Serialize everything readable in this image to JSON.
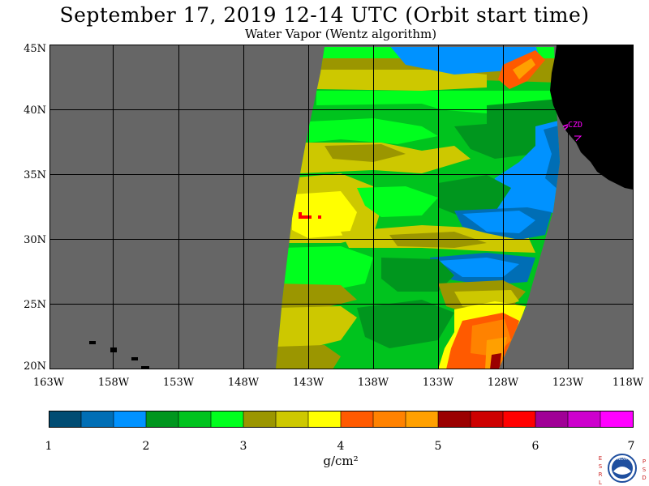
{
  "header": {
    "title": "September 17, 2019  12-14 UTC  (Orbit start time)",
    "subtitle": "Water Vapor (Wentz algorithm)"
  },
  "map": {
    "lat_labels": [
      "45N",
      "40N",
      "35N",
      "30N",
      "25N",
      "20N"
    ],
    "lon_labels": [
      "163W",
      "158W",
      "153W",
      "148W",
      "143W",
      "138W",
      "133W",
      "128W",
      "123W",
      "118W"
    ],
    "station_label": "CZD",
    "colors": {
      "land": "#000000",
      "no_data": "#666666",
      "grid": "#000000",
      "station": "#ff00ff"
    }
  },
  "colorbar": {
    "tick_labels": [
      "1",
      "2",
      "3",
      "4",
      "5",
      "6",
      "7"
    ],
    "unit_label": "g/cm²",
    "colors": [
      "#004c73",
      "#006eb5",
      "#0092ff",
      "#00961e",
      "#00c31e",
      "#00ff1e",
      "#9b9600",
      "#cdc800",
      "#ffff00",
      "#ff5a00",
      "#ff8200",
      "#ffa000",
      "#9b0000",
      "#cd0000",
      "#ff0000",
      "#a00096",
      "#cd00cd",
      "#ff00ff"
    ]
  },
  "logo": {
    "left_letters": [
      "E",
      "S",
      "R",
      "L"
    ],
    "right_letters": [
      "P",
      "S",
      "D"
    ],
    "emblem_text": "NOAA"
  }
}
